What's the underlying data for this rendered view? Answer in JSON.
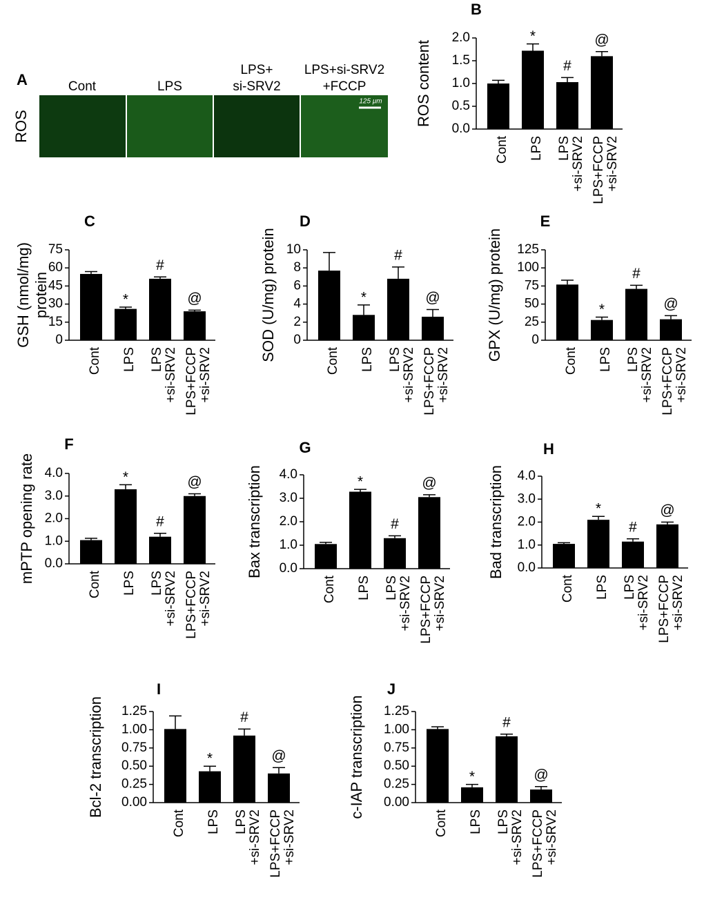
{
  "panel_a": {
    "label": "A",
    "row_label": "ROS",
    "columns": [
      [
        "Cont"
      ],
      [
        "LPS"
      ],
      [
        "LPS+",
        "si-SRV2"
      ],
      [
        "LPS+si-SRV2",
        "+FCCP"
      ]
    ],
    "scale_bar": "125 μm"
  },
  "chart_data": [
    {
      "type": "bar",
      "panel": "B",
      "ylabel": [
        "ROS content"
      ],
      "color": "#000000",
      "categories": [
        [
          "Cont"
        ],
        [
          "LPS"
        ],
        [
          "LPS",
          "+si-SRV2"
        ],
        [
          "LPS+FCCP",
          "+si-SRV2"
        ]
      ],
      "values": [
        1.0,
        1.72,
        1.03,
        1.6
      ],
      "errors": [
        0.07,
        0.15,
        0.1,
        0.1
      ],
      "annotations": [
        null,
        "*",
        "#",
        "@"
      ],
      "ylim": [
        0,
        2
      ],
      "yticks": [
        {
          "value": 0,
          "label": "0.0"
        },
        0.5,
        {
          "value": 1,
          "label": "1.0"
        },
        1.5,
        {
          "value": 2,
          "label": "2.0"
        }
      ]
    },
    {
      "type": "bar",
      "panel": "C",
      "ylabel": [
        "GSH (nmol/mg)",
        "protein"
      ],
      "color": "#000000",
      "categories": [
        [
          "Cont"
        ],
        [
          "LPS"
        ],
        [
          "LPS",
          "+si-SRV2"
        ],
        [
          "LPS+FCCP",
          "+si-SRV2"
        ]
      ],
      "values": [
        55,
        26,
        51,
        24
      ],
      "errors": [
        2,
        1.5,
        1.5,
        1
      ],
      "annotations": [
        null,
        "*",
        "#",
        "@"
      ],
      "ylim": [
        0,
        75
      ],
      "yticks": [
        0,
        15,
        30,
        45,
        60,
        75
      ]
    },
    {
      "type": "bar",
      "panel": "D",
      "ylabel": [
        "SOD (U/mg) protein"
      ],
      "color": "#000000",
      "categories": [
        [
          "Cont"
        ],
        [
          "LPS"
        ],
        [
          "LPS",
          "+si-SRV2"
        ],
        [
          "LPS+FCCP",
          "+si-SRV2"
        ]
      ],
      "values": [
        7.7,
        2.8,
        6.8,
        2.6
      ],
      "errors": [
        2,
        1.1,
        1.3,
        0.8
      ],
      "annotations": [
        null,
        "*",
        "#",
        "@"
      ],
      "ylim": [
        0,
        10
      ],
      "yticks": [
        0,
        2,
        4,
        6,
        8,
        10
      ]
    },
    {
      "type": "bar",
      "panel": "E",
      "ylabel": [
        "GPX (U/mg) protein"
      ],
      "color": "#000000",
      "categories": [
        [
          "Cont"
        ],
        [
          "LPS"
        ],
        [
          "LPS",
          "+si-SRV2"
        ],
        [
          "LPS+FCCP",
          "+si-SRV2"
        ]
      ],
      "values": [
        77,
        28,
        71,
        29
      ],
      "errors": [
        6,
        4,
        5,
        5
      ],
      "annotations": [
        null,
        "*",
        "#",
        "@"
      ],
      "ylim": [
        0,
        125
      ],
      "yticks": [
        0,
        25,
        50,
        75,
        100,
        125
      ]
    },
    {
      "type": "bar",
      "panel": "F",
      "ylabel": [
        "mPTP opening rate"
      ],
      "color": "#000000",
      "categories": [
        [
          "Cont"
        ],
        [
          "LPS"
        ],
        [
          "LPS",
          "+si-SRV2"
        ],
        [
          "LPS+FCCP",
          "+si-SRV2"
        ]
      ],
      "values": [
        1.05,
        3.3,
        1.2,
        3.0
      ],
      "errors": [
        0.08,
        0.2,
        0.15,
        0.1
      ],
      "annotations": [
        null,
        "*",
        "#",
        "@"
      ],
      "ylim": [
        0,
        4
      ],
      "yticks": [
        {
          "value": 0,
          "label": "0.0"
        },
        {
          "value": 1,
          "label": "1.0"
        },
        {
          "value": 2,
          "label": "2.0"
        },
        {
          "value": 3,
          "label": "3.0"
        },
        {
          "value": 4,
          "label": "4.0"
        }
      ]
    },
    {
      "type": "bar",
      "panel": "G",
      "ylabel": [
        "Bax transcription"
      ],
      "color": "#000000",
      "categories": [
        [
          "Cont"
        ],
        [
          "LPS"
        ],
        [
          "LPS",
          "+si-SRV2"
        ],
        [
          "LPS+FCCP",
          "+si-SRV2"
        ]
      ],
      "values": [
        1.05,
        3.28,
        1.3,
        3.05
      ],
      "errors": [
        0.07,
        0.1,
        0.1,
        0.1
      ],
      "annotations": [
        null,
        "*",
        "#",
        "@"
      ],
      "ylim": [
        0,
        4
      ],
      "yticks": [
        {
          "value": 0,
          "label": "0.0"
        },
        {
          "value": 1,
          "label": "1.0"
        },
        {
          "value": 2,
          "label": "2.0"
        },
        {
          "value": 3,
          "label": "3.0"
        },
        {
          "value": 4,
          "label": "4.0"
        }
      ]
    },
    {
      "type": "bar",
      "panel": "H",
      "ylabel": [
        "Bad transcription"
      ],
      "color": "#000000",
      "categories": [
        [
          "Cont"
        ],
        [
          "LPS"
        ],
        [
          "LPS",
          "+si-SRV2"
        ],
        [
          "LPS+FCCP",
          "+si-SRV2"
        ]
      ],
      "values": [
        1.05,
        2.1,
        1.15,
        1.9
      ],
      "errors": [
        0.05,
        0.15,
        0.12,
        0.1
      ],
      "annotations": [
        null,
        "*",
        "#",
        "@"
      ],
      "ylim": [
        0,
        4
      ],
      "yticks": [
        {
          "value": 0,
          "label": "0.0"
        },
        {
          "value": 1,
          "label": "1.0"
        },
        {
          "value": 2,
          "label": "2.0"
        },
        {
          "value": 3,
          "label": "3.0"
        },
        {
          "value": 4,
          "label": "4.0"
        }
      ]
    },
    {
      "type": "bar",
      "panel": "I",
      "ylabel": [
        "Bcl-2 transcription"
      ],
      "color": "#000000",
      "categories": [
        [
          "Cont"
        ],
        [
          "LPS"
        ],
        [
          "LPS",
          "+si-SRV2"
        ],
        [
          "LPS+FCCP",
          "+si-SRV2"
        ]
      ],
      "values": [
        1.01,
        0.43,
        0.92,
        0.4
      ],
      "errors": [
        0.18,
        0.07,
        0.09,
        0.08
      ],
      "annotations": [
        null,
        "*",
        "#",
        "@"
      ],
      "ylim": [
        0,
        1.25
      ],
      "yticks": [
        {
          "value": 0,
          "label": "0.00"
        },
        0.25,
        {
          "value": 0.5,
          "label": "0.50"
        },
        0.75,
        {
          "value": 1,
          "label": "1.00"
        },
        1.25
      ]
    },
    {
      "type": "bar",
      "panel": "J",
      "ylabel": [
        "c-IAP transcription"
      ],
      "color": "#000000",
      "categories": [
        [
          "Cont"
        ],
        [
          "LPS"
        ],
        [
          "LPS",
          "+si-SRV2"
        ],
        [
          "LPS+FCCP",
          "+si-SRV2"
        ]
      ],
      "values": [
        1.01,
        0.21,
        0.91,
        0.18
      ],
      "errors": [
        0.03,
        0.04,
        0.03,
        0.04
      ],
      "annotations": [
        null,
        "*",
        "#",
        "@"
      ],
      "ylim": [
        0,
        1.25
      ],
      "yticks": [
        {
          "value": 0,
          "label": "0.00"
        },
        0.25,
        {
          "value": 0.5,
          "label": "0.50"
        },
        0.75,
        {
          "value": 1,
          "label": "1.00"
        },
        1.25
      ]
    }
  ]
}
